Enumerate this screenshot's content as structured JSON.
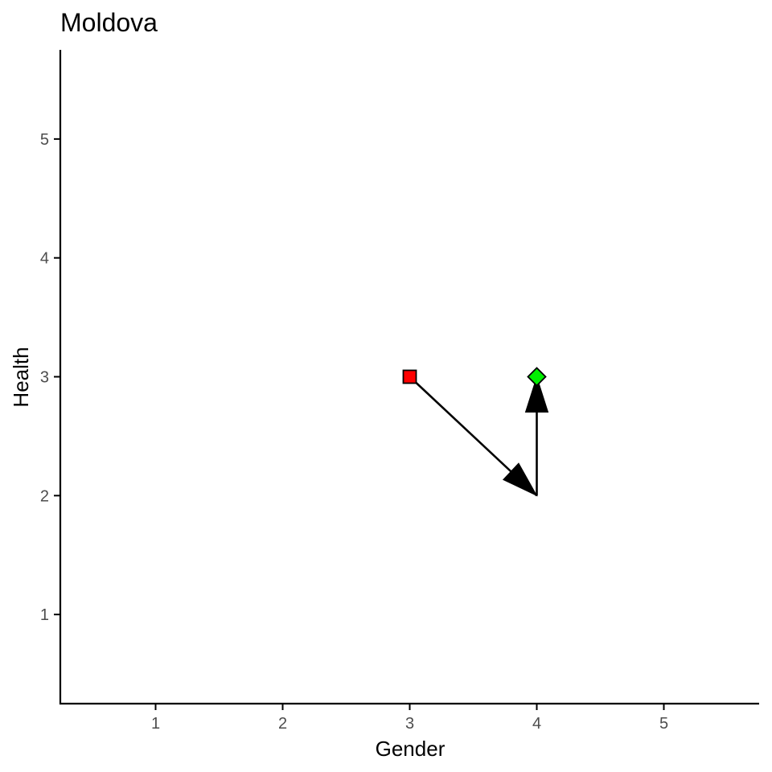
{
  "chart_data": {
    "type": "scatter",
    "title": "Moldova",
    "xlabel": "Gender",
    "ylabel": "Health",
    "xlim": [
      0.25,
      5.75
    ],
    "ylim": [
      0.25,
      5.75
    ],
    "xticks": [
      1,
      2,
      3,
      4,
      5
    ],
    "yticks": [
      1,
      2,
      3,
      4,
      5
    ],
    "grid": false,
    "points": [
      {
        "x": 3,
        "y": 3,
        "shape": "square",
        "color": "#ff0000"
      },
      {
        "x": 4,
        "y": 3,
        "shape": "diamond",
        "color": "#00ee00"
      }
    ],
    "path": [
      {
        "x": 3,
        "y": 3
      },
      {
        "x": 4,
        "y": 2
      },
      {
        "x": 4,
        "y": 3
      }
    ]
  }
}
